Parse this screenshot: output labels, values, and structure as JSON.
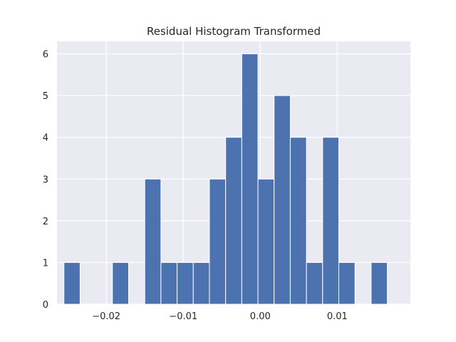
{
  "chart_data": {
    "type": "bar",
    "title": "Residual Histogram Transformed",
    "xlabel": "",
    "ylabel": "",
    "xlim": [
      -0.0264,
      0.0195
    ],
    "ylim": [
      0,
      6.3
    ],
    "grid": true,
    "legend": "none",
    "bin_edges": [
      -0.0255,
      -0.0234,
      -0.0213,
      -0.0192,
      -0.0171,
      -0.015,
      -0.0129,
      -0.0108,
      -0.0087,
      -0.0066,
      -0.0045,
      -0.0024,
      -0.0003,
      0.0018,
      0.0039,
      0.006,
      0.0081,
      0.0102,
      0.0123,
      0.0144,
      0.0165
    ],
    "counts": [
      1,
      0,
      0,
      1,
      0,
      3,
      1,
      1,
      1,
      3,
      4,
      6,
      3,
      5,
      4,
      1,
      4,
      1,
      0,
      1
    ],
    "x_ticks": [
      -0.02,
      -0.01,
      0.0,
      0.01
    ],
    "x_tick_labels": [
      "−0.02",
      "−0.01",
      "0.00",
      "0.01"
    ],
    "y_ticks": [
      0,
      1,
      2,
      3,
      4,
      5,
      6
    ],
    "y_tick_labels": [
      "0",
      "1",
      "2",
      "3",
      "4",
      "5",
      "6"
    ],
    "colors": {
      "bar": "#4c72b0",
      "background": "#eaeaf2",
      "grid": "#ffffff"
    }
  }
}
